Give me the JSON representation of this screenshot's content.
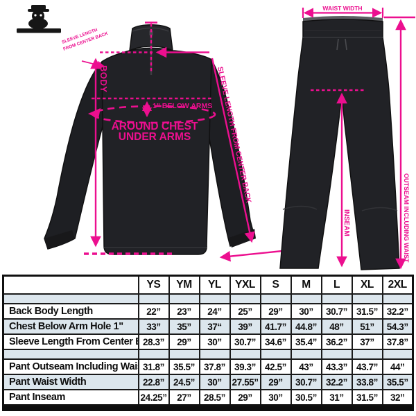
{
  "accent_pink": "#EC0F8F",
  "garment_color": "#212226",
  "jacket": {
    "labels": {
      "body": "BODY",
      "below_arms": "1\" BELOW ARMS",
      "around_chest_line1": "AROUND CHEST",
      "around_chest_line2": "UNDER ARMS",
      "shoulder_note_line1": "SLEEVE LENGTH",
      "shoulder_note_line2": "FROM CENTER BACK",
      "sleeve": "SLEEVE LENGTH FROM CENTER BACK"
    }
  },
  "pants": {
    "labels": {
      "waist": "WAIST WIDTH",
      "outseam": "OUTSEAM INCLUDING WAIST",
      "inseam": "INSEAM"
    }
  },
  "table": {
    "columns": [
      "",
      "YS",
      "YM",
      "YL",
      "YXL",
      "S",
      "M",
      "L",
      "XL",
      "2XL"
    ],
    "rows": [
      {
        "spacer": true,
        "shaded": true
      },
      {
        "label": "Back Body Length",
        "shaded": false,
        "values": [
          "22”",
          "23”",
          "24”",
          "25”",
          "29”",
          "30”",
          "30.7”",
          "31.5”",
          "32.2”"
        ]
      },
      {
        "label": "Chest Below Arm Hole 1\"",
        "shaded": true,
        "values": [
          "33”",
          "35”",
          "37“",
          "39”",
          "41.7”",
          "44.8”",
          "48”",
          "51”",
          "54.3”"
        ]
      },
      {
        "label": "Sleeve Length From Center Back",
        "shaded": false,
        "values": [
          "28.3”",
          "29”",
          "30”",
          "30.7”",
          "34.6”",
          "35.4”",
          "36.2”",
          "37”",
          "37.8”"
        ]
      },
      {
        "spacer": true,
        "shaded": true
      },
      {
        "label": "Pant Outseam Including Waist",
        "shaded": false,
        "values": [
          "31.8”",
          "35.5”",
          "37.8”",
          "39.3”",
          "42.5”",
          "43”",
          "43.3”",
          "43.7”",
          "44”"
        ]
      },
      {
        "label": "Pant Waist Width",
        "shaded": true,
        "values": [
          "22.8”",
          "24.5”",
          "30”",
          "27.55”",
          "29”",
          "30.7”",
          "32.2”",
          "33.8”",
          "35.5”"
        ]
      },
      {
        "label": "Pant Inseam",
        "shaded": false,
        "values": [
          "24.25”",
          "27”",
          "28.5”",
          "29”",
          "30”",
          "30.5”",
          "31”",
          "31.5”",
          "32”"
        ]
      }
    ]
  }
}
